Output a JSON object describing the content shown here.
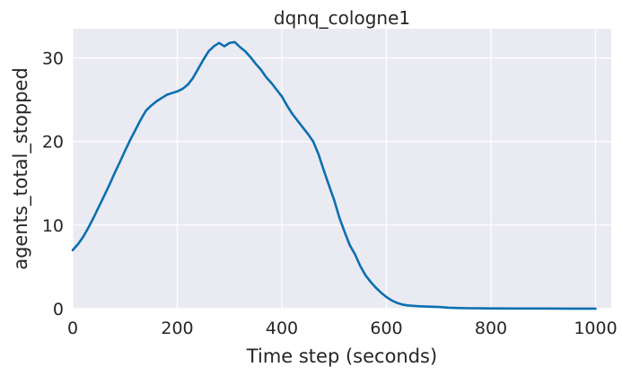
{
  "chart_data": {
    "type": "line",
    "title": "dqnq_cologne1",
    "xlabel": "Time step (seconds)",
    "ylabel": "agents_total_stopped",
    "xlim": [
      0,
      1030
    ],
    "ylim": [
      0,
      33.5
    ],
    "xticks": [
      0,
      200,
      400,
      600,
      800,
      1000
    ],
    "yticks": [
      0,
      10,
      20,
      30
    ],
    "grid": true,
    "colors": {
      "background": "#eaeaf2",
      "grid": "#ffffff",
      "line": "#0b6fb0",
      "text": "#262626"
    },
    "series": [
      {
        "x": [
          0,
          10,
          20,
          30,
          40,
          50,
          60,
          70,
          80,
          90,
          100,
          110,
          120,
          130,
          140,
          150,
          160,
          170,
          180,
          190,
          200,
          210,
          220,
          230,
          240,
          250,
          260,
          270,
          280,
          290,
          300,
          310,
          320,
          330,
          340,
          350,
          360,
          370,
          380,
          390,
          400,
          410,
          420,
          430,
          440,
          450,
          460,
          470,
          480,
          490,
          500,
          510,
          520,
          530,
          540,
          550,
          560,
          570,
          580,
          590,
          600,
          610,
          620,
          630,
          640,
          660,
          680,
          700,
          720,
          740,
          760,
          780,
          800,
          850,
          900,
          950,
          1000
        ],
        "y": [
          7.0,
          7.7,
          8.6,
          9.7,
          10.9,
          12.2,
          13.5,
          14.8,
          16.2,
          17.5,
          18.9,
          20.2,
          21.4,
          22.6,
          23.7,
          24.3,
          24.8,
          25.2,
          25.6,
          25.8,
          26.0,
          26.3,
          26.8,
          27.6,
          28.7,
          29.8,
          30.8,
          31.4,
          31.8,
          31.4,
          31.8,
          31.9,
          31.3,
          30.8,
          30.1,
          29.3,
          28.6,
          27.7,
          27.0,
          26.2,
          25.4,
          24.3,
          23.3,
          22.5,
          21.7,
          20.9,
          20.0,
          18.5,
          16.6,
          14.8,
          13.0,
          10.9,
          9.2,
          7.6,
          6.5,
          5.1,
          4.0,
          3.2,
          2.5,
          1.9,
          1.4,
          1.0,
          0.7,
          0.5,
          0.4,
          0.3,
          0.25,
          0.2,
          0.12,
          0.08,
          0.05,
          0.04,
          0.03,
          0.02,
          0.02,
          0.01,
          0.01
        ]
      }
    ]
  }
}
